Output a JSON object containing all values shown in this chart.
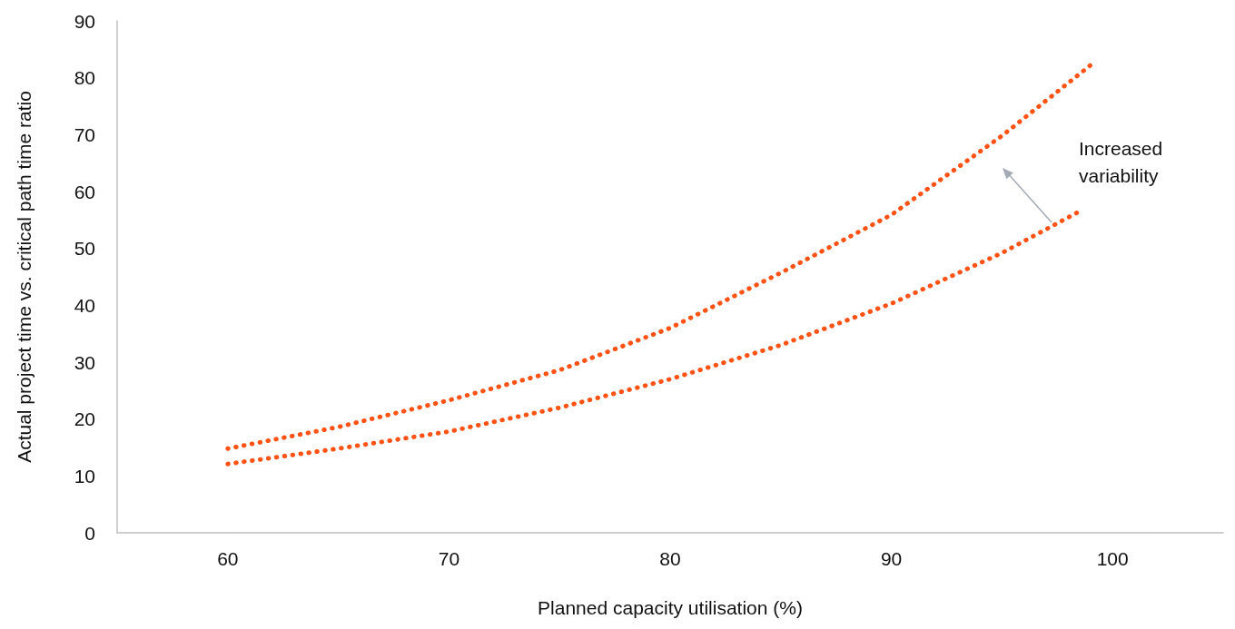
{
  "chart_data": {
    "type": "line",
    "xlabel": "Planned capacity utilisation (%)",
    "ylabel": "Actual project time vs. critical path time ratio",
    "xlim": [
      55,
      105
    ],
    "xticks": [
      60,
      70,
      80,
      90,
      100
    ],
    "ylim": [
      0,
      90
    ],
    "yticks": [
      0,
      10,
      20,
      30,
      40,
      50,
      60,
      70,
      80,
      90
    ],
    "grid": false,
    "marker": "none",
    "line_style": "dotted",
    "series": [
      {
        "color": "#ff5214",
        "x": [
          60,
          65,
          70,
          75,
          80,
          85,
          90,
          95,
          99
        ],
        "values": [
          14.8,
          18.6,
          23.3,
          28.6,
          36,
          45.7,
          55.9,
          69.8,
          82.2
        ]
      },
      {
        "color": "#ff5214",
        "x": [
          60,
          65,
          70,
          75,
          80,
          85,
          90,
          95,
          98.6
        ],
        "values": [
          12.1,
          14.8,
          17.8,
          22,
          27,
          33,
          40.3,
          49.2,
          56.7
        ]
      }
    ],
    "annotations": [
      "Increased\nvariability"
    ]
  }
}
